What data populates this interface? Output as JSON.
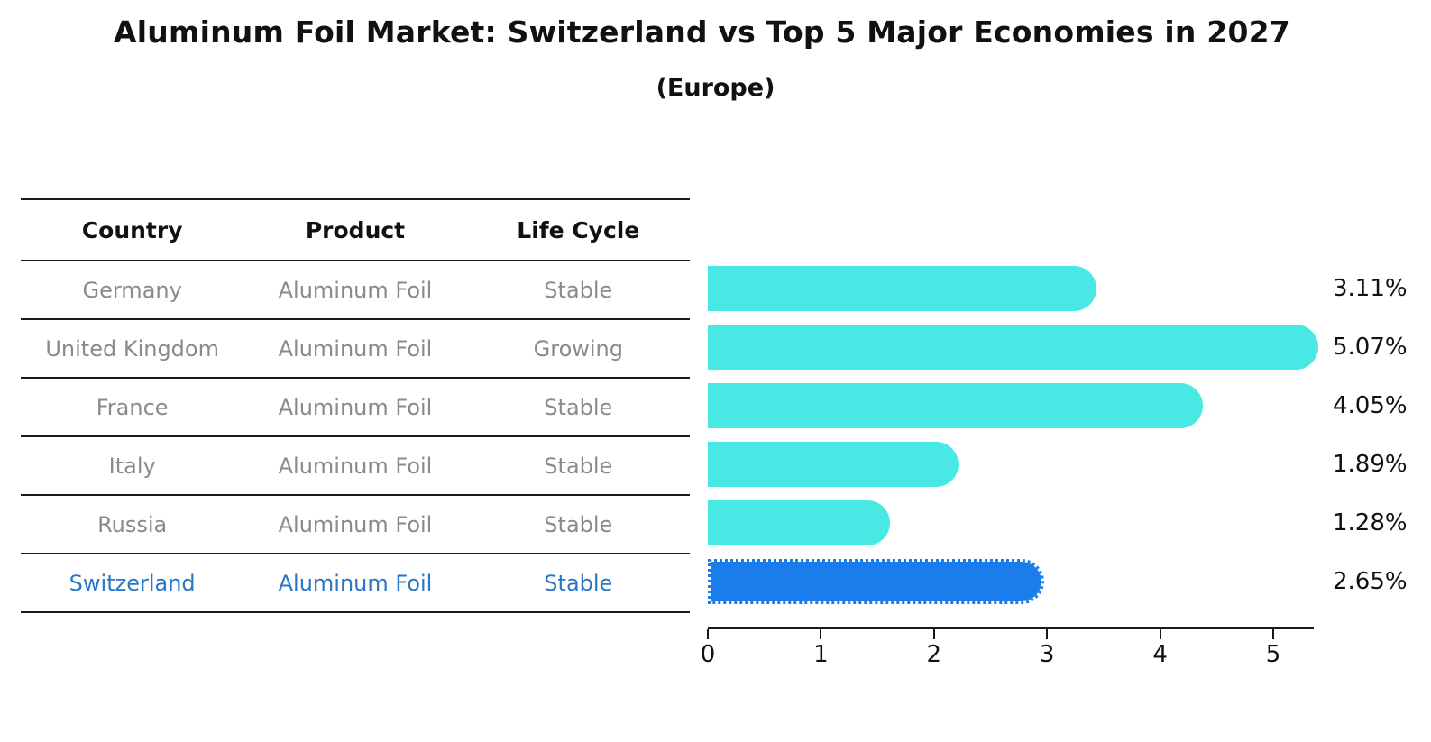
{
  "title": "Aluminum Foil Market: Switzerland vs Top 5 Major Economies in 2027",
  "subtitle": "(Europe)",
  "table": {
    "headers": [
      "Country",
      "Product",
      "Life Cycle"
    ],
    "rows": [
      {
        "country": "Germany",
        "product": "Aluminum Foil",
        "life_cycle": "Stable",
        "highlight": false
      },
      {
        "country": "United Kingdom",
        "product": "Aluminum Foil",
        "life_cycle": "Growing",
        "highlight": false
      },
      {
        "country": "France",
        "product": "Aluminum Foil",
        "life_cycle": "Stable",
        "highlight": false
      },
      {
        "country": "Italy",
        "product": "Aluminum Foil",
        "life_cycle": "Stable",
        "highlight": false
      },
      {
        "country": "Russia",
        "product": "Aluminum Foil",
        "life_cycle": "Stable",
        "highlight": false
      },
      {
        "country": "Switzerland",
        "product": "Aluminum Foil",
        "life_cycle": "Stable",
        "highlight": true
      }
    ]
  },
  "chart_data": {
    "type": "bar",
    "orientation": "horizontal",
    "title": "Aluminum Foil Market: Switzerland vs Top 5 Major Economies in 2027",
    "subtitle": "(Europe)",
    "categories": [
      "Germany",
      "United Kingdom",
      "France",
      "Italy",
      "Russia",
      "Switzerland"
    ],
    "values": [
      3.11,
      5.07,
      4.05,
      1.89,
      1.28,
      2.65
    ],
    "value_labels": [
      "3.11%",
      "5.07%",
      "4.05%",
      "1.89%",
      "1.28%",
      "2.65%"
    ],
    "x_tick_labels": [
      "0",
      "1",
      "2",
      "3",
      "4",
      "5"
    ],
    "xlim": [
      0,
      5.34
    ],
    "grid": false,
    "legend": false,
    "highlight_index": 5,
    "unit": "percent"
  },
  "colors": {
    "bar": "#48E9E5",
    "highlight_bar": "#1B7DEB",
    "highlight_text": "#2B76C5",
    "table_text": "#8a8a8a",
    "header_text": "#111111",
    "axis": "#1a1a1a"
  }
}
